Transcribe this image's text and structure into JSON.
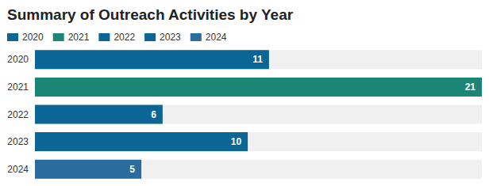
{
  "chart_data": {
    "type": "bar",
    "title": "Summary of Outreach Activities by Year",
    "orientation": "horizontal",
    "categories": [
      "2020",
      "2021",
      "2022",
      "2023",
      "2024"
    ],
    "values": [
      11,
      21,
      6,
      10,
      5
    ],
    "colors": [
      "#0b6696",
      "#1b8576",
      "#0b6696",
      "#0b6696",
      "#2a6c9e"
    ],
    "xlim": [
      0,
      21
    ],
    "legend": "top-left",
    "data_labels": true,
    "tick_labels": "y",
    "grid": false
  }
}
